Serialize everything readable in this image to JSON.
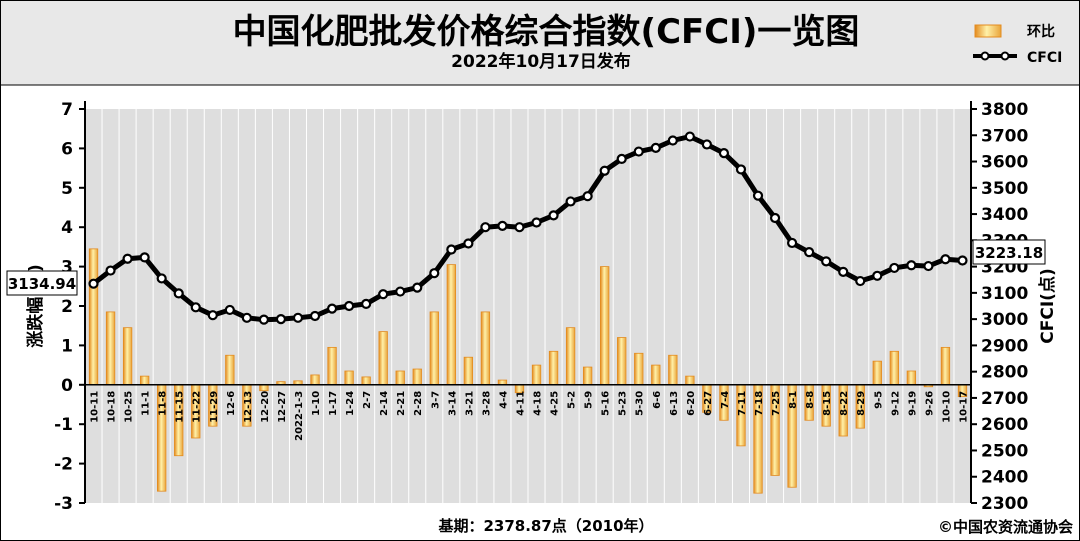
{
  "header": {
    "title": "中国化肥批发价格综合指数(CFCI)一览图",
    "subtitle": "2022年10月17日发布"
  },
  "legend": {
    "bar_label": "环比",
    "line_label": "CFCI"
  },
  "callouts": {
    "left_value": "3134.94",
    "right_value": "3223.18"
  },
  "footer": {
    "base_note": "基期：2378.87点（2010年）",
    "copyright": "©中国农资流通协会"
  },
  "colors": {
    "bar_fill": "#f6e08a",
    "bar_edge": "#e38b1f",
    "line": "#000000",
    "plot_bg": "#dedede",
    "header_bg": "#e8e8e8"
  },
  "chart_data": {
    "type": "bar",
    "categories": [
      "10-11",
      "10-18",
      "10-25",
      "11-1",
      "11-8",
      "11-15",
      "11-22",
      "11-29",
      "12-6",
      "12-13",
      "12-20",
      "12-27",
      "2022-1-3",
      "1-10",
      "1-17",
      "1-24",
      "2-7",
      "2-14",
      "2-21",
      "2-28",
      "3-7",
      "3-14",
      "3-21",
      "3-28",
      "4-4",
      "4-11",
      "4-18",
      "4-25",
      "5-2",
      "5-9",
      "5-16",
      "5-23",
      "5-30",
      "6-6",
      "6-13",
      "6-20",
      "6-27",
      "7-4",
      "7-11",
      "7-18",
      "7-25",
      "8-1",
      "8-8",
      "8-15",
      "8-22",
      "8-29",
      "9-5",
      "9-12",
      "9-19",
      "9-26",
      "10-10",
      "10-17"
    ],
    "series": [
      {
        "name": "环比",
        "axis": "left",
        "values": [
          3.45,
          1.85,
          1.45,
          0.22,
          -2.7,
          -1.8,
          -1.35,
          -1.05,
          0.75,
          -1.05,
          -0.15,
          0.08,
          0.1,
          0.25,
          0.95,
          0.35,
          0.2,
          1.35,
          0.35,
          0.4,
          1.85,
          3.05,
          0.7,
          1.85,
          0.12,
          -0.2,
          0.5,
          0.85,
          1.45,
          0.45,
          3.0,
          1.2,
          0.8,
          0.5,
          0.75,
          0.22,
          -0.7,
          -0.9,
          -1.55,
          -2.75,
          -2.3,
          -2.6,
          -0.9,
          -1.05,
          -1.3,
          -1.1,
          0.6,
          0.85,
          0.35,
          -0.05,
          0.95,
          -0.3
        ]
      },
      {
        "name": "CFCI",
        "axis": "right",
        "type": "line",
        "values": [
          3134.94,
          3185,
          3230,
          3235,
          3155,
          3098,
          3045,
          3015,
          3035,
          3005,
          2998,
          3000,
          3005,
          3012,
          3040,
          3050,
          3058,
          3095,
          3105,
          3120,
          3175,
          3265,
          3288,
          3350,
          3355,
          3350,
          3368,
          3395,
          3448,
          3468,
          3565,
          3610,
          3638,
          3652,
          3680,
          3695,
          3665,
          3632,
          3570,
          3470,
          3385,
          3290,
          3255,
          3220,
          3180,
          3145,
          3165,
          3195,
          3205,
          3202,
          3228,
          3223.18
        ]
      }
    ],
    "y_left": {
      "label": "涨跌幅(%)",
      "ylim": [
        -3,
        7
      ],
      "ticks": [
        -3,
        -2,
        -1,
        0,
        1,
        2,
        3,
        4,
        5,
        6,
        7
      ]
    },
    "y_right": {
      "label": "CFCI(点)",
      "ylim": [
        2300,
        3800
      ],
      "ticks": [
        2300,
        2400,
        2500,
        2600,
        2700,
        2800,
        2900,
        3000,
        3100,
        3200,
        3300,
        3400,
        3500,
        3600,
        3700,
        3800
      ]
    },
    "legend_position": "top-right",
    "grid": true
  }
}
